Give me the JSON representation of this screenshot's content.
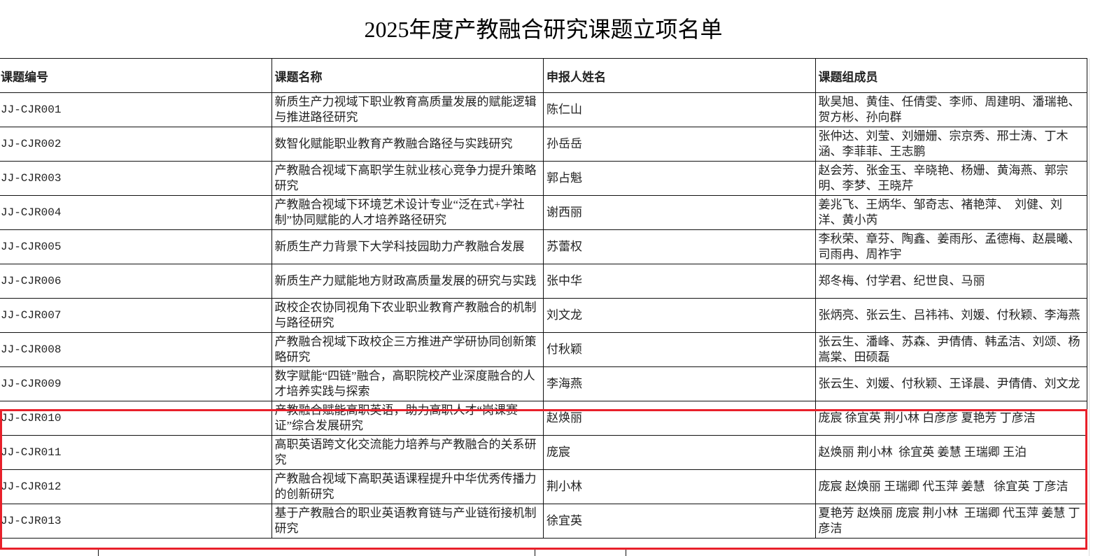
{
  "title": "2025年度产教融合研究课题立项名单",
  "columns": [
    "课题编号",
    "课题名称",
    "申报人姓名",
    "课题组成员"
  ],
  "rows": [
    {
      "id": "JJ-CJR001",
      "name": "新质生产力视域下职业教育高质量发展的赋能逻辑与推进路径研究",
      "applicant": "陈仁山",
      "members": "耿昊旭、黄佳、任倩雯、李师、周建明、潘瑞艳、贺方彬、孙向群"
    },
    {
      "id": "JJ-CJR002",
      "name": "数智化赋能职业教育产教融合路径与实践研究",
      "applicant": "孙岳岳",
      "members": "张仲达、刘莹、刘姗姗、宗京秀、邢士涛、丁木涵、李菲菲、王志鹏"
    },
    {
      "id": "JJ-CJR003",
      "name": "产教融合视域下高职学生就业核心竞争力提升策略研究",
      "applicant": "郭占魁",
      "members": "赵会芳、张金玉、辛晓艳、杨姗、黄海燕、郭宗明、李梦、王晓芹"
    },
    {
      "id": "JJ-CJR004",
      "name": "产教融合视域下环境艺术设计专业“泛在式+学社制”协同赋能的人才培养路径研究",
      "applicant": "谢西丽",
      "members": "姜兆飞、王炳华、邹奇志、褚艳萍、  刘健、刘洋、黄小芮"
    },
    {
      "id": "JJ-CJR005",
      "name": "新质生产力背景下大学科技园助力产教融合发展",
      "applicant": "苏蕾权",
      "members": "李秋荣、章芬、陶鑫、姜雨彤、孟德梅、赵晨曦、司雨冉、周祚宇"
    },
    {
      "id": "JJ-CJR006",
      "name": "新质生产力赋能地方财政高质量发展的研究与实践",
      "applicant": "张中华",
      "members": "郑冬梅、付学君、纪世良、马丽"
    },
    {
      "id": "JJ-CJR007",
      "name": "政校企农协同视角下农业职业教育产教融合的机制与路径研究",
      "applicant": "刘文龙",
      "members": "张炳亮、张云生、吕祎祎、刘媛、付秋颖、李海燕"
    },
    {
      "id": "JJ-CJR008",
      "name": "产教融合视域下政校企三方推进产学研协同创新策略研究",
      "applicant": "付秋颖",
      "members": "张云生、潘峰、苏森、尹倩倩、韩孟洁、刘颂、杨嵩棠、田硕磊"
    },
    {
      "id": "JJ-CJR009",
      "name": "数字赋能“四链”融合，高职院校产业深度融合的人才培养实践与探索",
      "applicant": "李海燕",
      "members": "张云生、刘媛、付秋颖、王译晨、尹倩倩、刘文龙"
    },
    {
      "id": "JJ-CJR010",
      "name": "产教融合赋能高职英语，助力高职人才“岗课赛证”综合发展研究",
      "applicant": "赵焕丽",
      "members": "庞宸 徐宜英 荆小林 白彦彦 夏艳芳 丁彦洁"
    },
    {
      "id": "JJ-CJR011",
      "name": "高职英语跨文化交流能力培养与产教融合的关系研究",
      "applicant": "庞宸",
      "members": "赵焕丽 荆小林  徐宜英 姜慧 王瑞卿 王泊"
    },
    {
      "id": "JJ-CJR012",
      "name": "产教融合视域下高职英语课程提升中华优秀传播力的创新研究",
      "applicant": "荆小林",
      "members": "庞宸 赵焕丽 王瑞卿 代玉萍 姜慧   徐宜英 丁彦洁"
    },
    {
      "id": "JJ-CJR013",
      "name": "基于产教融合的职业英语教育链与产业链衔接机制研究",
      "applicant": "徐宜英",
      "members": "夏艳芳 赵焕丽 庞宸 荆小林  王瑞卿 代玉萍 姜慧 丁彦洁"
    }
  ],
  "highlight_color": "#e8202a"
}
